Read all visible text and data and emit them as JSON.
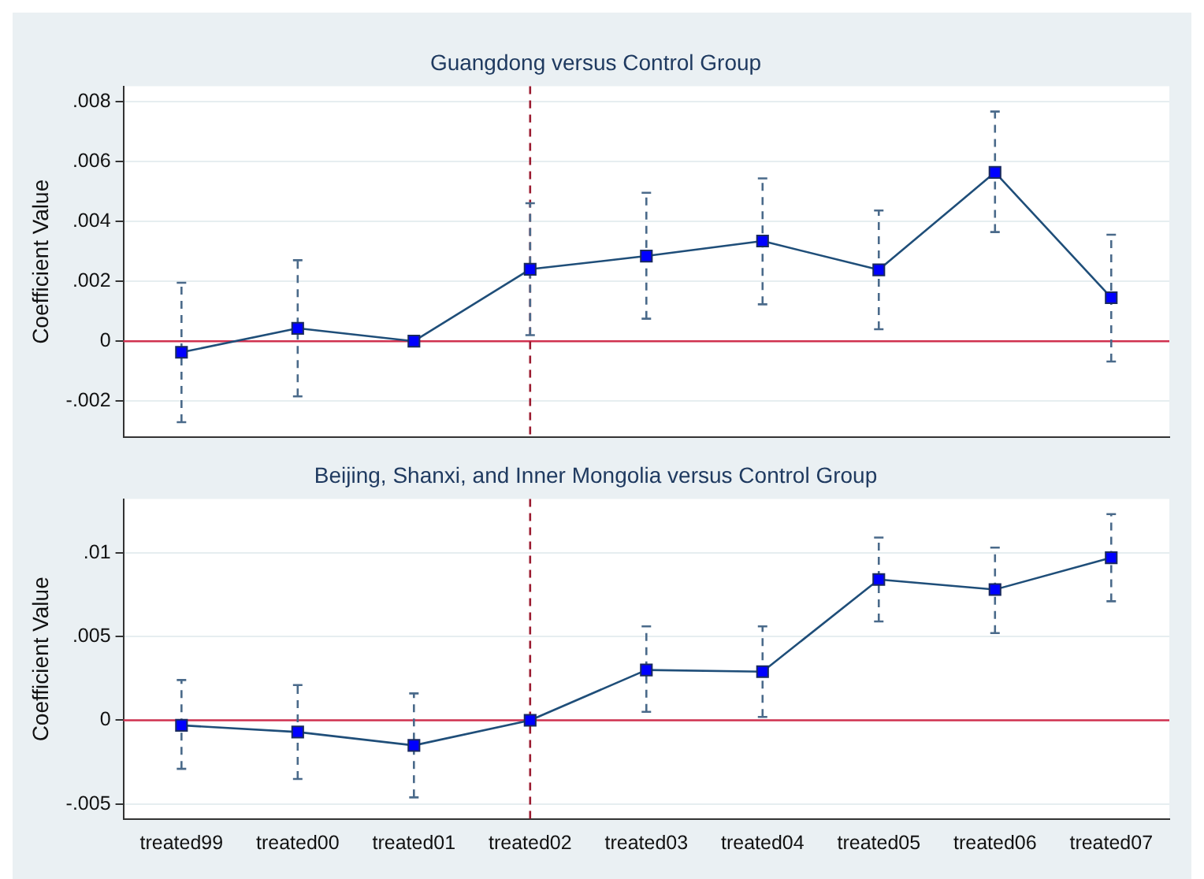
{
  "chart_data": [
    {
      "type": "line",
      "title": "Guangdong versus Control Group",
      "ylabel": "Coefficient Value",
      "categories": [
        "treated99",
        "treated00",
        "treated01",
        "treated02",
        "treated03",
        "treated04",
        "treated05",
        "treated06",
        "treated07"
      ],
      "series": [
        {
          "color": "#0000ff",
          "values": [
            -0.00037,
            0.00043,
            0,
            0.0024,
            0.00284,
            0.00334,
            0.00238,
            0.00563,
            0.00145
          ],
          "errors": [
            [
              -0.0027,
              0.00195
            ],
            [
              -0.00184,
              0.0027
            ],
            null,
            [
              0.0002,
              0.0046
            ],
            [
              0.00075,
              0.00495
            ],
            [
              0.00123,
              0.00543
            ],
            [
              0.0004,
              0.00436
            ],
            [
              0.00364,
              0.00766
            ],
            [
              -0.00068,
              0.00355
            ]
          ]
        }
      ],
      "ylim": [
        -0.0032,
        0.0085
      ],
      "yticks": [
        {
          "value": -0.002,
          "label": "-.002"
        },
        0,
        {
          "value": 0.002,
          "label": ".002"
        },
        {
          "value": 0.004,
          "label": ".004"
        },
        {
          "value": 0.006,
          "label": ".006"
        },
        {
          "value": 0.008,
          "label": ".008"
        }
      ],
      "ref_lines": [
        {
          "axis": "y",
          "value": 0,
          "color": "#d0314f",
          "line_style": "solid"
        },
        {
          "axis": "x",
          "value": "treated02",
          "color": "#9b1b30",
          "line_style": "dashed"
        }
      ],
      "grid": "y",
      "marker": "square",
      "line_style": "solid",
      "legend": false,
      "tick_labels": "y"
    },
    {
      "type": "line",
      "title": "Beijing, Shanxi, and Inner Mongolia versus Control Group",
      "ylabel": "Coefficient Value",
      "categories": [
        "treated99",
        "treated00",
        "treated01",
        "treated02",
        "treated03",
        "treated04",
        "treated05",
        "treated06",
        "treated07"
      ],
      "series": [
        {
          "color": "#0000ff",
          "values": [
            -0.0003,
            -0.0007,
            -0.0015,
            0,
            0.003,
            0.0029,
            0.0084,
            0.0078,
            0.0097
          ],
          "errors": [
            [
              -0.0029,
              0.0024
            ],
            [
              -0.0035,
              0.0021
            ],
            [
              -0.0046,
              0.0016
            ],
            null,
            [
              0.0005,
              0.0056
            ],
            [
              0.0002,
              0.0056
            ],
            [
              0.0059,
              0.0109
            ],
            [
              0.0052,
              0.0103
            ],
            [
              0.0071,
              0.0123
            ]
          ]
        }
      ],
      "ylim": [
        -0.0059,
        0.0132
      ],
      "yticks": [
        {
          "value": -0.005,
          "label": "-.005"
        },
        0,
        {
          "value": 0.005,
          "label": ".005"
        },
        {
          "value": 0.01,
          "label": ".01"
        }
      ],
      "ref_lines": [
        {
          "axis": "y",
          "value": 0,
          "color": "#d0314f",
          "line_style": "solid"
        },
        {
          "axis": "x",
          "value": "treated02",
          "color": "#9b1b30",
          "line_style": "dashed"
        }
      ],
      "grid": "y",
      "marker": "square",
      "line_style": "solid",
      "legend": false
    }
  ]
}
